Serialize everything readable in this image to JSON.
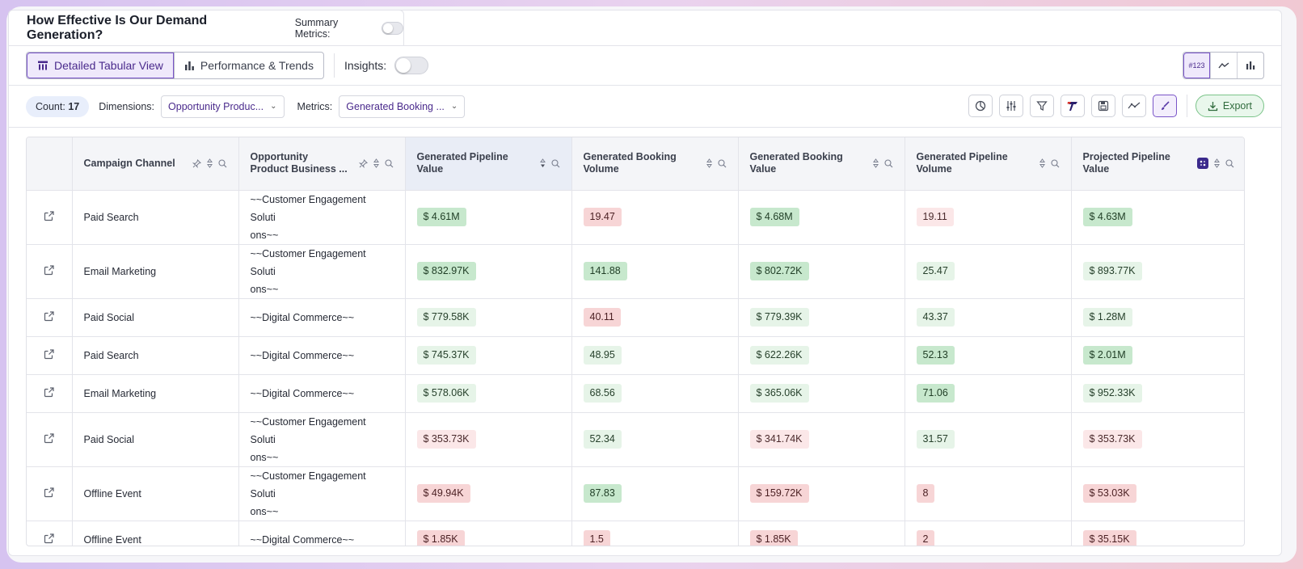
{
  "header": {
    "title": "How Effective Is Our Demand Generation?",
    "summary_metrics_label": "Summary Metrics:"
  },
  "views": {
    "tabular_label": "Detailed Tabular View",
    "trends_label": "Performance & Trends",
    "insights_label": "Insights:",
    "format_number_label": "#123"
  },
  "filters": {
    "count_label": "Count:",
    "count_value": "17",
    "dimensions_label": "Dimensions:",
    "dimensions_value": "Opportunity Produc...",
    "metrics_label": "Metrics:",
    "metrics_value": "Generated Booking ...",
    "export_label": "Export"
  },
  "table": {
    "columns": [
      "Campaign Channel",
      "Opportunity Product Business ...",
      "Generated Pipeline Value",
      "Generated Booking Volume",
      "Generated Booking Value",
      "Generated Pipeline Volume",
      "Projected Pipeline Value"
    ],
    "column_lines": [
      [
        "Campaign Channel"
      ],
      [
        "Opportunity",
        "Product Business ..."
      ],
      [
        "Generated Pipeline Value"
      ],
      [
        "Generated Booking",
        "Volume"
      ],
      [
        "Generated Booking Value"
      ],
      [
        "Generated Pipeline",
        "Volume"
      ],
      [
        "Projected Pipeline",
        "Value"
      ]
    ],
    "rows": [
      {
        "channel": "Paid Search",
        "product": [
          "~~Customer Engagement Soluti",
          "ons~~"
        ],
        "values": [
          [
            "$ 4.61M",
            "g1"
          ],
          [
            "19.47",
            "r1"
          ],
          [
            "$ 4.68M",
            "g1"
          ],
          [
            "19.11",
            "r2"
          ],
          [
            "$ 4.63M",
            "g1"
          ]
        ]
      },
      {
        "channel": "Email Marketing",
        "product": [
          "~~Customer Engagement Soluti",
          "ons~~"
        ],
        "values": [
          [
            "$ 832.97K",
            "g1"
          ],
          [
            "141.88",
            "g1"
          ],
          [
            "$ 802.72K",
            "g1"
          ],
          [
            "25.47",
            "g2"
          ],
          [
            "$ 893.77K",
            "g2"
          ]
        ]
      },
      {
        "channel": "Paid Social",
        "product": [
          "~~Digital Commerce~~"
        ],
        "values": [
          [
            "$ 779.58K",
            "g2"
          ],
          [
            "40.11",
            "r1"
          ],
          [
            "$ 779.39K",
            "g2"
          ],
          [
            "43.37",
            "g2"
          ],
          [
            "$ 1.28M",
            "g2"
          ]
        ]
      },
      {
        "channel": "Paid Search",
        "product": [
          "~~Digital Commerce~~"
        ],
        "values": [
          [
            "$ 745.37K",
            "g2"
          ],
          [
            "48.95",
            "g2"
          ],
          [
            "$ 622.26K",
            "g2"
          ],
          [
            "52.13",
            "g1"
          ],
          [
            "$ 2.01M",
            "g1"
          ]
        ]
      },
      {
        "channel": "Email Marketing",
        "product": [
          "~~Digital Commerce~~"
        ],
        "values": [
          [
            "$ 578.06K",
            "g2"
          ],
          [
            "68.56",
            "g2"
          ],
          [
            "$ 365.06K",
            "g2"
          ],
          [
            "71.06",
            "g1"
          ],
          [
            "$ 952.33K",
            "g2"
          ]
        ]
      },
      {
        "channel": "Paid Social",
        "product": [
          "~~Customer Engagement Soluti",
          "ons~~"
        ],
        "values": [
          [
            "$ 353.73K",
            "r2"
          ],
          [
            "52.34",
            "g2"
          ],
          [
            "$ 341.74K",
            "r2"
          ],
          [
            "31.57",
            "g2"
          ],
          [
            "$ 353.73K",
            "r2"
          ]
        ]
      },
      {
        "channel": "Offline Event",
        "product": [
          "~~Customer Engagement Soluti",
          "ons~~"
        ],
        "values": [
          [
            "$ 49.94K",
            "r1"
          ],
          [
            "87.83",
            "g1"
          ],
          [
            "$ 159.72K",
            "r1"
          ],
          [
            "8",
            "r1"
          ],
          [
            "$ 53.03K",
            "r1"
          ]
        ]
      },
      {
        "channel": "Offline Event",
        "product": [
          "~~Digital Commerce~~"
        ],
        "values": [
          [
            "$ 1.85K",
            "r1"
          ],
          [
            "1.5",
            "r1"
          ],
          [
            "$ 1.85K",
            "r1"
          ],
          [
            "2",
            "r1"
          ],
          [
            "$ 35.15K",
            "r1"
          ]
        ]
      }
    ]
  },
  "colors": {
    "accent_purple": "#7a55c8",
    "positive_strong": "#c7e8cd",
    "positive_light": "#e6f4e8",
    "negative_strong": "#f7d5d6",
    "negative_light": "#fbe7e8"
  }
}
